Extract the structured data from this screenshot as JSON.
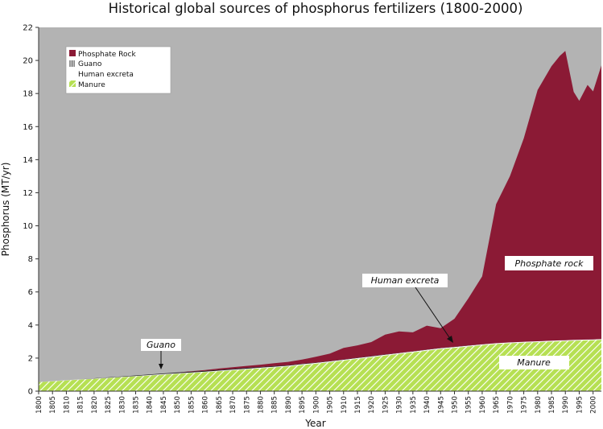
{
  "chart_data": {
    "type": "area",
    "stacked": true,
    "title": "Historical global sources of phosphorus fertilizers (1800-2000)",
    "xlabel": "Year",
    "ylabel": "Phosphorus (MT/yr)",
    "xlim": [
      1800,
      2003
    ],
    "ylim": [
      0,
      22
    ],
    "yticks": [
      0,
      2,
      4,
      6,
      8,
      10,
      12,
      14,
      16,
      18,
      20,
      22
    ],
    "xticks": [
      1800,
      1805,
      1810,
      1815,
      1820,
      1825,
      1830,
      1835,
      1840,
      1845,
      1850,
      1855,
      1860,
      1865,
      1870,
      1875,
      1880,
      1885,
      1890,
      1895,
      1900,
      1905,
      1910,
      1915,
      1920,
      1925,
      1930,
      1935,
      1940,
      1945,
      1950,
      1955,
      1960,
      1965,
      1970,
      1975,
      1980,
      1985,
      1990,
      1995,
      2000
    ],
    "grid": false,
    "legend_position": "top-left",
    "legend": [
      "Phosphate Rock",
      "Guano",
      "Human excreta",
      "Manure"
    ],
    "colors": {
      "plot_bg": "#b3b3b3",
      "phosphate_rock": "#8b1a35",
      "guano": "#222222",
      "human_excreta": "#ffffff",
      "manure": "#b6e053",
      "manure_hatch": "#ffffff"
    },
    "x": [
      1800,
      1805,
      1810,
      1815,
      1820,
      1825,
      1830,
      1835,
      1840,
      1845,
      1850,
      1855,
      1860,
      1865,
      1870,
      1875,
      1880,
      1885,
      1890,
      1895,
      1900,
      1905,
      1910,
      1915,
      1920,
      1925,
      1930,
      1935,
      1940,
      1945,
      1950,
      1955,
      1960,
      1965,
      1970,
      1975,
      1980,
      1985,
      1988,
      1990,
      1993,
      1995,
      1998,
      2000,
      2003
    ],
    "series": [
      {
        "name": "Manure",
        "values": [
          0.55,
          0.6,
          0.65,
          0.7,
          0.75,
          0.8,
          0.85,
          0.9,
          0.95,
          1.0,
          1.05,
          1.1,
          1.15,
          1.2,
          1.26,
          1.32,
          1.38,
          1.44,
          1.5,
          1.58,
          1.66,
          1.75,
          1.85,
          1.95,
          2.05,
          2.15,
          2.25,
          2.35,
          2.45,
          2.55,
          2.62,
          2.7,
          2.78,
          2.85,
          2.9,
          2.94,
          2.97,
          3.0,
          3.02,
          3.03,
          3.05,
          3.06,
          3.07,
          3.08,
          3.1
        ]
      },
      {
        "name": "Human excreta",
        "values": [
          0.0,
          0.01,
          0.01,
          0.01,
          0.02,
          0.02,
          0.02,
          0.02,
          0.03,
          0.03,
          0.03,
          0.03,
          0.03,
          0.04,
          0.04,
          0.04,
          0.04,
          0.04,
          0.04,
          0.05,
          0.05,
          0.05,
          0.05,
          0.05,
          0.05,
          0.05,
          0.05,
          0.05,
          0.05,
          0.05,
          0.05,
          0.05,
          0.05,
          0.05,
          0.05,
          0.05,
          0.05,
          0.05,
          0.05,
          0.05,
          0.05,
          0.05,
          0.05,
          0.05,
          0.05
        ]
      },
      {
        "name": "Guano",
        "values": [
          0.0,
          0.0,
          0.0,
          0.0,
          0.01,
          0.01,
          0.02,
          0.03,
          0.03,
          0.04,
          0.05,
          0.05,
          0.05,
          0.05,
          0.05,
          0.05,
          0.04,
          0.04,
          0.03,
          0.03,
          0.02,
          0.02,
          0.02,
          0.02,
          0.02,
          0.02,
          0.01,
          0.01,
          0.01,
          0.01,
          0.01,
          0.01,
          0.01,
          0.0,
          0.0,
          0.0,
          0.0,
          0.0,
          0.0,
          0.0,
          0.0,
          0.0,
          0.0,
          0.0,
          0.0
        ]
      },
      {
        "name": "Phosphate Rock",
        "values": [
          0.0,
          0.0,
          0.0,
          0.0,
          0.0,
          0.0,
          0.0,
          0.0,
          0.0,
          0.0,
          0.0,
          0.02,
          0.05,
          0.08,
          0.1,
          0.12,
          0.14,
          0.17,
          0.2,
          0.25,
          0.35,
          0.45,
          0.7,
          0.75,
          0.85,
          1.2,
          1.3,
          1.15,
          1.45,
          1.2,
          1.7,
          2.85,
          4.1,
          8.4,
          10.05,
          12.3,
          15.2,
          16.6,
          17.2,
          17.5,
          15.0,
          14.45,
          15.4,
          15.0,
          16.55
        ]
      }
    ],
    "annotations": [
      {
        "text": "Guano",
        "x": 1845,
        "y": 1.1
      },
      {
        "text": "Human excreta",
        "x": 1950,
        "y": 2.7
      },
      {
        "text": "Phosphate rock"
      },
      {
        "text": "Manure"
      }
    ]
  }
}
